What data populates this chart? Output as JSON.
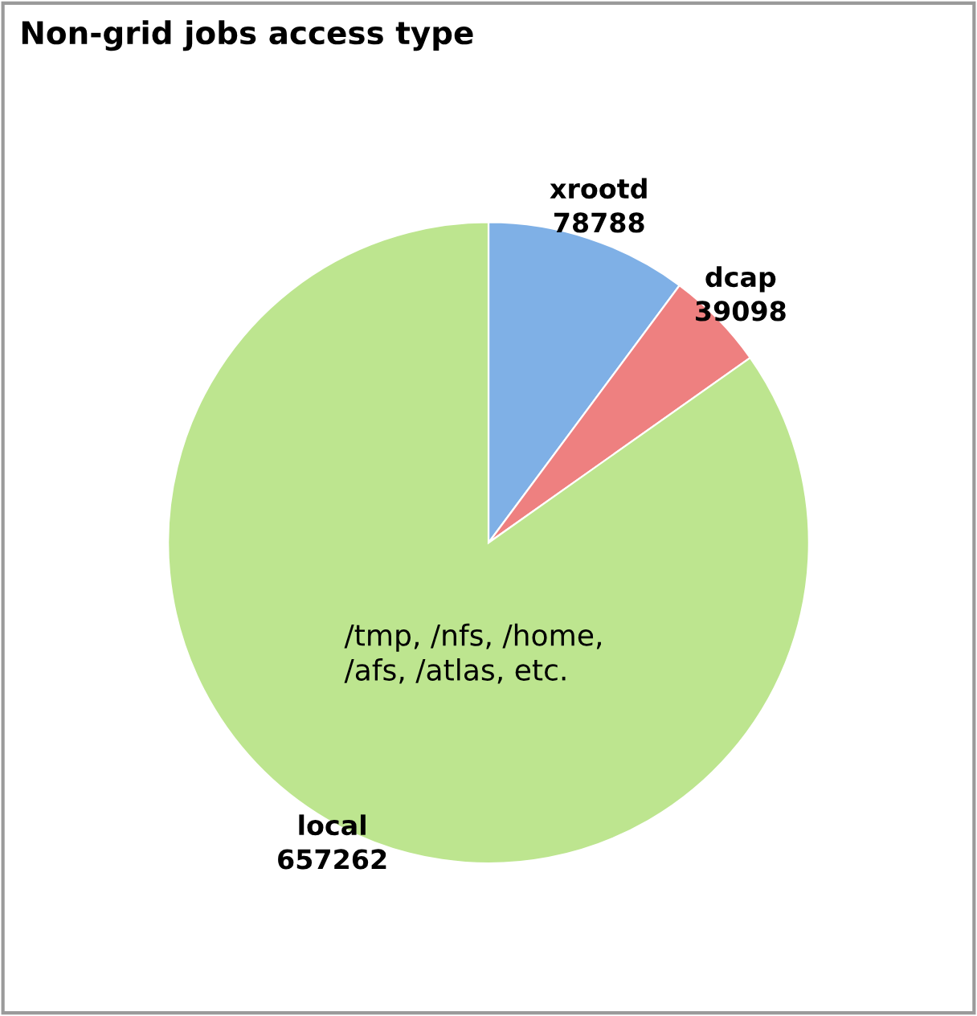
{
  "chart_data": {
    "type": "pie",
    "title": "Non-grid jobs access type",
    "categories": [
      "xrootd",
      "dcap",
      "local"
    ],
    "values": [
      78788,
      39098,
      657262
    ],
    "colors": [
      "#7fb0e6",
      "#ee8080",
      "#bde58f"
    ],
    "data_labels": true,
    "annotations": [
      "/tmp, /nfs, /home,\n/afs, /atlas, etc."
    ]
  }
}
